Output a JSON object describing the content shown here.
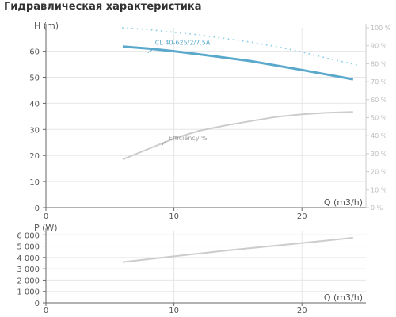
{
  "title": "Гидравлическая характеристика",
  "colors": {
    "pump_curve": "#5aa9cc",
    "npsh_curve": "#89cfe6",
    "efficiency_curve": "#cccccc",
    "power_curve": "#cccccc",
    "grid": "#e6e6e6",
    "axis": "#666666",
    "axis_text": "#555555",
    "right_axis_text": "#bbbbbb"
  },
  "chart_data": [
    {
      "type": "line",
      "title": "",
      "xlabel": "Q (m3/h)",
      "ylabel": "H (m)",
      "xlim": [
        0,
        25
      ],
      "ylim": [
        0,
        69
      ],
      "xticks": [
        "0",
        "10",
        "20"
      ],
      "yticks": [
        "0",
        "10",
        "20",
        "30",
        "40",
        "50",
        "60"
      ],
      "y2label": "",
      "y2lim": [
        0,
        100
      ],
      "y2ticks": [
        "0 %",
        "10 %",
        "20 %",
        "30 %",
        "40 %",
        "50 %",
        "60 %",
        "70 %",
        "80 %",
        "90 %",
        "100 %"
      ],
      "grid": true,
      "series": [
        {
          "name": "CL 40-625/2/7.5A",
          "axis": "left",
          "style": "solid",
          "x": [
            6,
            8,
            10,
            12,
            14,
            16,
            18,
            20,
            22,
            24
          ],
          "y": [
            61.8,
            61.0,
            60.0,
            58.8,
            57.5,
            56.2,
            54.5,
            52.8,
            51.0,
            49.2
          ]
        },
        {
          "name": "",
          "axis": "right",
          "style": "dotted",
          "x": [
            6,
            8,
            10,
            12,
            14,
            16,
            18,
            20,
            22,
            24.5
          ],
          "y": [
            100,
            99,
            97.5,
            96,
            94,
            92,
            89.5,
            86.5,
            83,
            79
          ]
        },
        {
          "name": "Efficiency %",
          "axis": "left",
          "style": "solid",
          "x": [
            6,
            8,
            10,
            12,
            14,
            16,
            18,
            20,
            22,
            24
          ],
          "y": [
            18.5,
            22.5,
            26.5,
            29.5,
            31.5,
            33.2,
            34.8,
            35.8,
            36.4,
            36.7
          ]
        }
      ]
    },
    {
      "type": "line",
      "title": "",
      "xlabel": "Q (m3/h)",
      "ylabel": "P (W)",
      "xlim": [
        0,
        25
      ],
      "ylim": [
        0,
        6300
      ],
      "xticks": [
        "0",
        "10",
        "20"
      ],
      "yticks": [
        "0",
        "1 000",
        "2 000",
        "3 000",
        "4 000",
        "5 000",
        "6 000"
      ],
      "grid": true,
      "series": [
        {
          "name": "",
          "style": "solid",
          "x": [
            6,
            10,
            14,
            18,
            22,
            24
          ],
          "y": [
            3600,
            4100,
            4600,
            5050,
            5500,
            5750
          ]
        }
      ]
    }
  ]
}
